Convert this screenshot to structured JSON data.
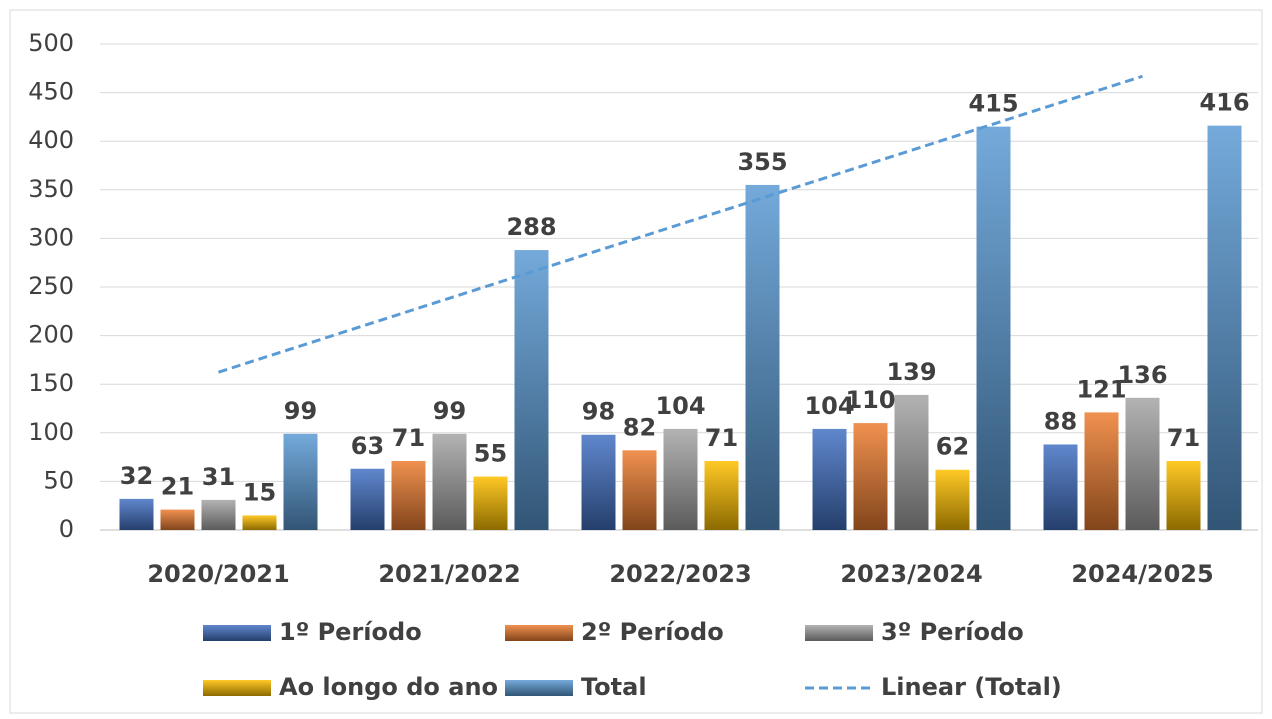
{
  "chart_data": {
    "type": "bar",
    "categories": [
      "2020/2021",
      "2021/2022",
      "2022/2023",
      "2023/2024",
      "2024/2025"
    ],
    "series": [
      {
        "name": "1º Período",
        "color": "#4472c4",
        "values": [
          32,
          63,
          98,
          104,
          88
        ]
      },
      {
        "name": "2º Período",
        "color": "#ed7d31",
        "values": [
          21,
          71,
          82,
          110,
          121
        ]
      },
      {
        "name": "3º Período",
        "color": "#a5a5a5",
        "values": [
          31,
          99,
          104,
          139,
          136
        ]
      },
      {
        "name": "Ao longo do ano",
        "color": "#ffc000",
        "values": [
          15,
          55,
          71,
          62,
          71
        ]
      },
      {
        "name": "Total",
        "color": "#5b9bd5",
        "values": [
          99,
          288,
          355,
          415,
          416
        ]
      }
    ],
    "trendline": {
      "name": "Linear (Total)",
      "color": "#5b9bd5",
      "values": [
        162.4,
        238.5,
        314.6,
        390.7,
        466.8
      ]
    },
    "ylim": [
      0,
      500
    ],
    "yticks": [
      0,
      50,
      100,
      150,
      200,
      250,
      300,
      350,
      400,
      450,
      500
    ],
    "grid": true
  }
}
